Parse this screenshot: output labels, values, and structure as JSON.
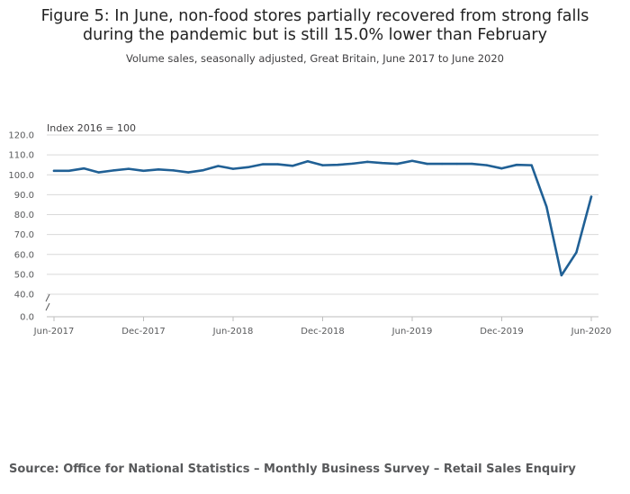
{
  "title_line1": "Figure 5: In June, non-food stores partially recovered from strong falls",
  "title_line2": "during the pandemic but is still 15.0% lower than February",
  "subtitle": "Volume sales, seasonally adjusted, Great Britain, June 2017 to June 2020",
  "source": "Source: Office for National Statistics – Monthly Business Survey – Retail Sales Enquiry",
  "colors": {
    "line": "#206095",
    "grid": "#d9d9d9",
    "axis": "#bebebe"
  },
  "chart_data": {
    "type": "line",
    "title": "Figure 5: In June, non-food stores partially recovered from strong falls during the pandemic but is still 15.0% lower than February",
    "subtitle": "Volume sales, seasonally adjusted, Great Britain, June 2017 to June 2020",
    "ylabel": "Index 2016 = 100",
    "xlabel": "",
    "ylim": [
      40,
      120
    ],
    "axis_break": true,
    "yticks": [
      "120.0",
      "110.0",
      "100.0",
      "90.0",
      "80.0",
      "70.0",
      "60.0",
      "50.0",
      "40.0",
      "0.0"
    ],
    "ytick_values": [
      120,
      110,
      100,
      90,
      80,
      70,
      60,
      50,
      40
    ],
    "xtick_labels": [
      "Jun-2017",
      "Dec-2017",
      "Jun-2018",
      "Dec-2018",
      "Jun-2019",
      "Dec-2019",
      "Jun-2020"
    ],
    "xtick_indices": [
      0,
      6,
      12,
      18,
      24,
      30,
      36
    ],
    "grid": true,
    "legend": "none",
    "series": [
      {
        "name": "Non-food stores",
        "x": [
          "Jun-2017",
          "Jul-2017",
          "Aug-2017",
          "Sep-2017",
          "Oct-2017",
          "Nov-2017",
          "Dec-2017",
          "Jan-2018",
          "Feb-2018",
          "Mar-2018",
          "Apr-2018",
          "May-2018",
          "Jun-2018",
          "Jul-2018",
          "Aug-2018",
          "Sep-2018",
          "Oct-2018",
          "Nov-2018",
          "Dec-2018",
          "Jan-2019",
          "Feb-2019",
          "Mar-2019",
          "Apr-2019",
          "May-2019",
          "Jun-2019",
          "Jul-2019",
          "Aug-2019",
          "Sep-2019",
          "Oct-2019",
          "Nov-2019",
          "Dec-2019",
          "Jan-2020",
          "Feb-2020",
          "Mar-2020",
          "Apr-2020",
          "May-2020",
          "Jun-2020"
        ],
        "values": [
          102.0,
          102.0,
          103.2,
          101.2,
          102.2,
          103.0,
          102.0,
          102.7,
          102.2,
          101.2,
          102.3,
          104.4,
          103.0,
          103.8,
          105.3,
          105.3,
          104.5,
          106.8,
          104.8,
          105.0,
          105.6,
          106.5,
          105.9,
          105.5,
          107.0,
          105.5,
          105.5,
          105.5,
          105.5,
          104.8,
          103.2,
          105.0,
          104.8,
          84.0,
          49.5,
          61.0,
          89.0
        ]
      }
    ]
  }
}
